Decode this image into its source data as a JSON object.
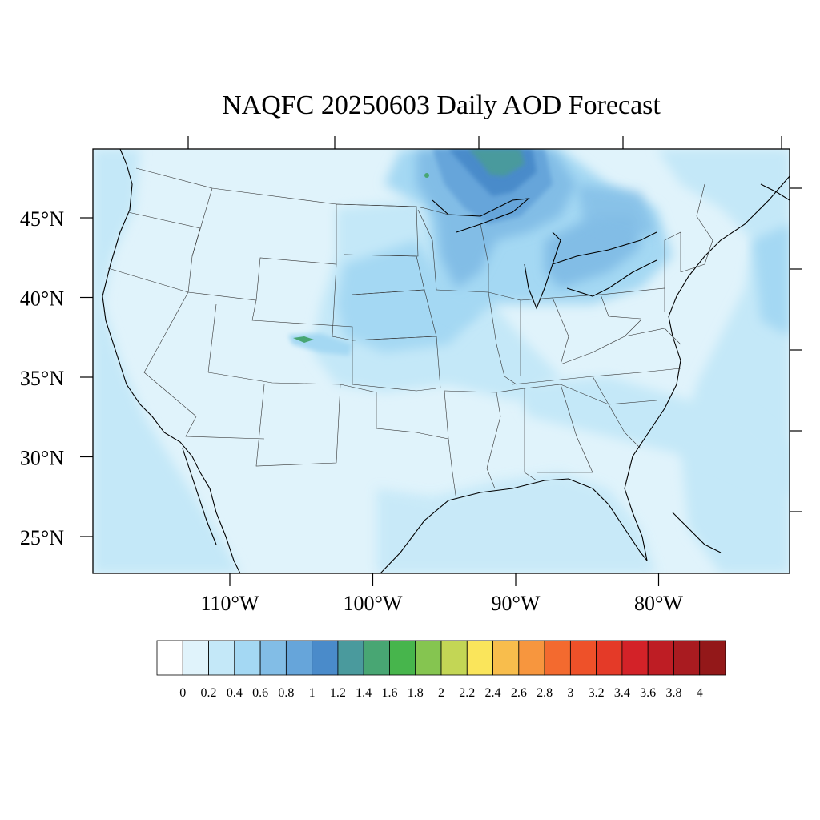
{
  "title": "NAQFC 20250603 Daily AOD Forecast",
  "map": {
    "lon_range": [
      -119,
      -70
    ],
    "lat_range": [
      22.5,
      49.4
    ],
    "lat_labels": [
      "45°N",
      "40°N",
      "35°N",
      "30°N",
      "25°N"
    ],
    "lat_values": [
      45,
      40,
      35,
      30,
      25
    ],
    "lon_labels": [
      "110°W",
      "100°W",
      "90°W",
      "80°W"
    ],
    "lon_values": [
      -110,
      -100,
      -90,
      -80
    ],
    "background_fill_level": 0.2,
    "features": [
      {
        "name": "northern-minnesota-lake-superior-plume",
        "level": 1.2
      },
      {
        "name": "upper-midwest-band",
        "level": 0.8
      },
      {
        "name": "great-lakes-ontario",
        "level": 0.6
      },
      {
        "name": "central-plains-corridor",
        "level": 0.4
      },
      {
        "name": "southern-colorado-fire-streak",
        "level": 1.6
      },
      {
        "name": "atlantic-offshore",
        "level": 0.4
      },
      {
        "name": "gulf-and-pacific-coast",
        "level": 0.2
      }
    ]
  },
  "colorbar": {
    "labels": [
      "0",
      "0.2",
      "0.4",
      "0.6",
      "0.8",
      "1",
      "1.2",
      "1.4",
      "1.6",
      "1.8",
      "2",
      "2.2",
      "2.4",
      "2.6",
      "2.8",
      "3",
      "3.2",
      "3.4",
      "3.6",
      "3.8",
      "4"
    ],
    "colors": [
      "#ffffff",
      "#e0f3fb",
      "#c4e8f8",
      "#a4d8f3",
      "#82bde6",
      "#66a5da",
      "#4a8bca",
      "#4a9a9d",
      "#48a673",
      "#47b54c",
      "#85c550",
      "#c3d655",
      "#fae55b",
      "#f8bd4c",
      "#f7963e",
      "#f36a2f",
      "#ee5129",
      "#e43a28",
      "#d32228",
      "#be1d24",
      "#a91b20",
      "#931819"
    ]
  }
}
